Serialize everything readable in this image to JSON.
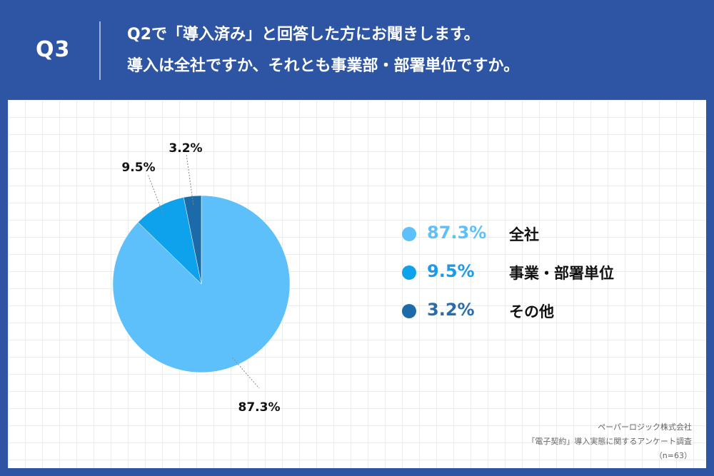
{
  "header": {
    "q_label": "Q3",
    "question_line1": "Q2で「導入済み」と回答した方にお聞きします。",
    "question_line2": "導入は全社ですか、それとも事業部・部署単位ですか。"
  },
  "colors": {
    "background": "#2e55a4",
    "slice_1": "#5ec0fb",
    "slice_2": "#0ea2ec",
    "slice_3": "#1c6ba8",
    "legend_1_text": "#5ec0fb",
    "legend_2_text": "#1c9aea",
    "legend_3_text": "#2a6ca8"
  },
  "chart_data": {
    "type": "pie",
    "slices": [
      {
        "label": "全社",
        "value": 87.3,
        "value_label": "87.3%"
      },
      {
        "label": "事業・部署単位",
        "value": 9.5,
        "value_label": "9.5%"
      },
      {
        "label": "その他",
        "value": 3.2,
        "value_label": "3.2%"
      }
    ],
    "start": "12 o'clock",
    "direction": "clockwise",
    "legend_position": "right"
  },
  "legend": [
    {
      "value": "87.3%",
      "name": "全社"
    },
    {
      "value": "9.5%",
      "name": "事業・部署単位"
    },
    {
      "value": "3.2%",
      "name": "その他"
    }
  ],
  "source": {
    "line1": "ペーパーロジック株式会社",
    "line2": "「電子契約」導入実態に関するアンケート調査",
    "line3": "（n=63）"
  }
}
